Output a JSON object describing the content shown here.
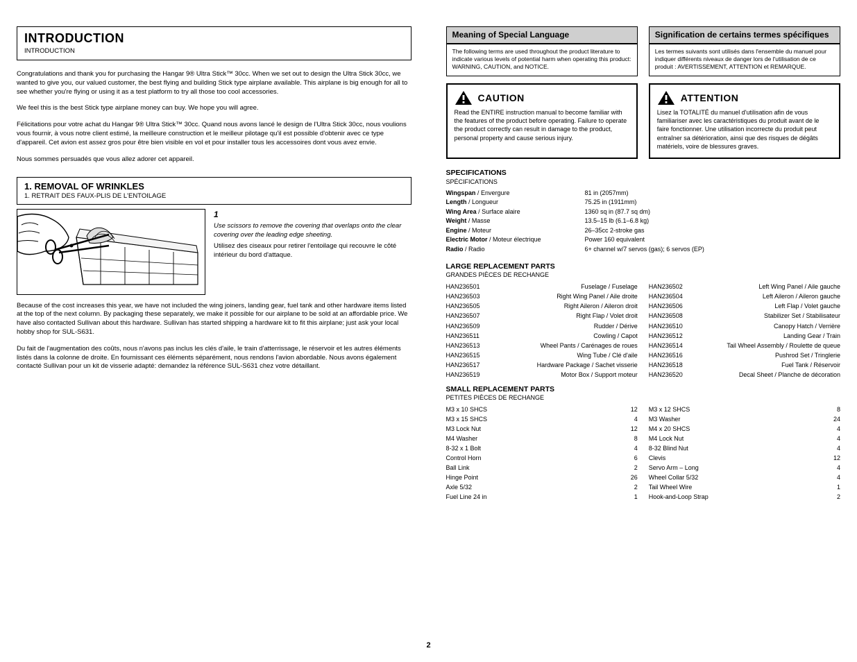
{
  "intro": {
    "title": "INTRODUCTION",
    "sub": "INTRODUCTION",
    "p1": "Congratulations and thank you for purchasing the Hangar 9® Ultra Stick™ 30cc. When we set out to design the Ultra Stick 30cc, we wanted to give you, our valued customer, the best flying and building Stick type airplane available. This airplane is big enough for all to see whether you're flying or using it as a test platform to try all those too cool accessories.",
    "p2": "We feel this is the best Stick type airplane money can buy. We hope you will agree.",
    "p1_fr": "Félicitations pour votre achat du Hangar 9® Ultra Stick™ 30cc. Quand nous avons lancé le design de l'Ultra Stick 30cc, nous voulions vous fournir, à vous notre client estimé, la meilleure construction et le meilleur pilotage qu'il est possible d'obtenir avec ce type d'appareil. Cet avion est assez gros pour être bien visible en vol et pour installer tous les accessoires dont vous avez envie.",
    "p2_fr": "Nous sommes persuadés que vous allez adorer cet appareil."
  },
  "section1": {
    "title": "1. REMOVAL OF WRINKLES",
    "sub": "1. RETRAIT DES FAUX-PLIS DE L'ENTOILAGE"
  },
  "step1": {
    "num": "1",
    "body_en": "Use scissors to remove the covering that overlaps onto the clear covering over the leading edge sheeting.",
    "body_fr": "Utilisez des ciseaux pour retirer l'entoilage qui recouvre le côté intérieur du bord d'attaque."
  },
  "coverNote": {
    "p1_en": "Because of the cost increases this year, we have not included the wing joiners, landing gear, fuel tank and other hardware items listed at the top of the next column. By packaging these separately, we make it possible for our airplane to be sold at an affordable price. We have also contacted Sullivan about this hardware. Sullivan has started shipping a hardware kit to fit this airplane; just ask your local hobby shop for SUL-S631.",
    "p1_fr": "Du fait de l'augmentation des coûts, nous n'avons pas inclus les clés d'aile, le train d'atterrissage, le réservoir et les autres éléments listés dans la colonne de droite. En fournissant ces éléments séparément, nous rendons l'avion abordable. Nous avons également contacté Sullivan pour un kit de visserie adapté: demandez la référence SUL-S631 chez votre détaillant."
  },
  "warranty": {
    "left": {
      "title": "Meaning of Special Language",
      "body": "The following terms are used throughout the product literature to indicate various levels of potential harm when operating this product: WARNING, CAUTION, and NOTICE."
    },
    "right": {
      "title": "Signification de certains termes spécifiques",
      "body": "Les termes suivants sont utilisés dans l'ensemble du manuel pour indiquer différents niveaux de danger lors de l'utilisation de ce produit : AVERTISSEMENT, ATTENTION et REMARQUE."
    }
  },
  "caution": {
    "left": {
      "title": "CAUTION",
      "body": "Read the ENTIRE instruction manual to become familiar with the features of the product before operating. Failure to operate the product correctly can result in damage to the product, personal property and cause serious injury."
    },
    "right": {
      "title": "ATTENTION",
      "body": "Lisez la TOTALITÉ du manuel d'utilisation afin de vous familiariser avec les caractéristiques du produit avant de le faire fonctionner. Une utilisation incorrecte du produit peut entraîner sa détérioration, ainsi que des risques de dégâts matériels, voire de blessures graves."
    }
  },
  "specs": {
    "title": "SPECIFICATIONS",
    "sub": "SPÉCIFICATIONS",
    "rows": [
      {
        "lab_en": "Wingspan",
        "lab_fr": "Envergure",
        "val": "81 in (2057mm)"
      },
      {
        "lab_en": "Length",
        "lab_fr": "Longueur",
        "val": "75.25 in (1911mm)"
      },
      {
        "lab_en": "Wing Area",
        "lab_fr": "Surface alaire",
        "val": "1360 sq in (87.7 sq dm)"
      },
      {
        "lab_en": "Weight",
        "lab_fr": "Masse",
        "val": "13.5–15 lb (6.1–6.8 kg)"
      },
      {
        "lab_en": "Engine",
        "lab_fr": "Moteur",
        "val": "26–35cc 2-stroke gas"
      },
      {
        "lab_en": "Electric Motor",
        "lab_fr": "Moteur électrique",
        "val": "Power 160 equivalent"
      },
      {
        "lab_en": "Radio",
        "lab_fr": "Radio",
        "val": "6+ channel w/7 servos (gas); 6 servos (EP)"
      }
    ]
  },
  "items": {
    "title": "LARGE REPLACEMENT PARTS",
    "sub": "GRANDES PIÈCES DE RECHANGE",
    "list": [
      {
        "n": "HAN236501",
        "d": "Fuselage / Fuselage"
      },
      {
        "n": "HAN236502",
        "d": "Left Wing Panel / Aile gauche"
      },
      {
        "n": "HAN236503",
        "d": "Right Wing Panel / Aile droite"
      },
      {
        "n": "HAN236504",
        "d": "Left Aileron / Aileron gauche"
      },
      {
        "n": "HAN236505",
        "d": "Right Aileron / Aileron droit"
      },
      {
        "n": "HAN236506",
        "d": "Left Flap / Volet gauche"
      },
      {
        "n": "HAN236507",
        "d": "Right Flap / Volet droit"
      },
      {
        "n": "HAN236508",
        "d": "Stabilizer Set / Stabilisateur"
      },
      {
        "n": "HAN236509",
        "d": "Rudder / Dérive"
      },
      {
        "n": "HAN236510",
        "d": "Canopy Hatch / Verrière"
      },
      {
        "n": "HAN236511",
        "d": "Cowling / Capot"
      },
      {
        "n": "HAN236512",
        "d": "Landing Gear / Train"
      },
      {
        "n": "HAN236513",
        "d": "Wheel Pants / Carénages de roues"
      },
      {
        "n": "HAN236514",
        "d": "Tail Wheel Assembly / Roulette de queue"
      },
      {
        "n": "HAN236515",
        "d": "Wing Tube / Clé d'aile"
      },
      {
        "n": "HAN236516",
        "d": "Pushrod Set / Tringlerie"
      },
      {
        "n": "HAN236517",
        "d": "Hardware Package / Sachet visserie"
      },
      {
        "n": "HAN236518",
        "d": "Fuel Tank / Réservoir"
      },
      {
        "n": "HAN236519",
        "d": "Motor Box / Support moteur"
      },
      {
        "n": "HAN236520",
        "d": "Decal Sheet / Planche de décoration"
      }
    ]
  },
  "small": {
    "title": "SMALL REPLACEMENT PARTS",
    "sub": "PETITES PIÈCES DE RECHANGE",
    "list": [
      {
        "n": "M3 x 10 SHCS",
        "q": "12"
      },
      {
        "n": "M3 x 12 SHCS",
        "q": "8"
      },
      {
        "n": "M3 x 15 SHCS",
        "q": "4"
      },
      {
        "n": "M3 Washer",
        "q": "24"
      },
      {
        "n": "M3 Lock Nut",
        "q": "12"
      },
      {
        "n": "M4 x 20 SHCS",
        "q": "4"
      },
      {
        "n": "M4 Washer",
        "q": "8"
      },
      {
        "n": "M4 Lock Nut",
        "q": "4"
      },
      {
        "n": "8-32 x 1 Bolt",
        "q": "4"
      },
      {
        "n": "8-32 Blind Nut",
        "q": "4"
      },
      {
        "n": "Control Horn",
        "q": "6"
      },
      {
        "n": "Clevis",
        "q": "12"
      },
      {
        "n": "Ball Link",
        "q": "2"
      },
      {
        "n": "Servo Arm – Long",
        "q": "4"
      },
      {
        "n": "Hinge Point",
        "q": "26"
      },
      {
        "n": "Wheel Collar 5/32",
        "q": "4"
      },
      {
        "n": "Axle 5/32",
        "q": "2"
      },
      {
        "n": "Tail Wheel Wire",
        "q": "1"
      },
      {
        "n": "Fuel Line 24 in",
        "q": "1"
      },
      {
        "n": "Hook-and-Loop Strap",
        "q": "2"
      }
    ]
  },
  "pageNumber": "2"
}
